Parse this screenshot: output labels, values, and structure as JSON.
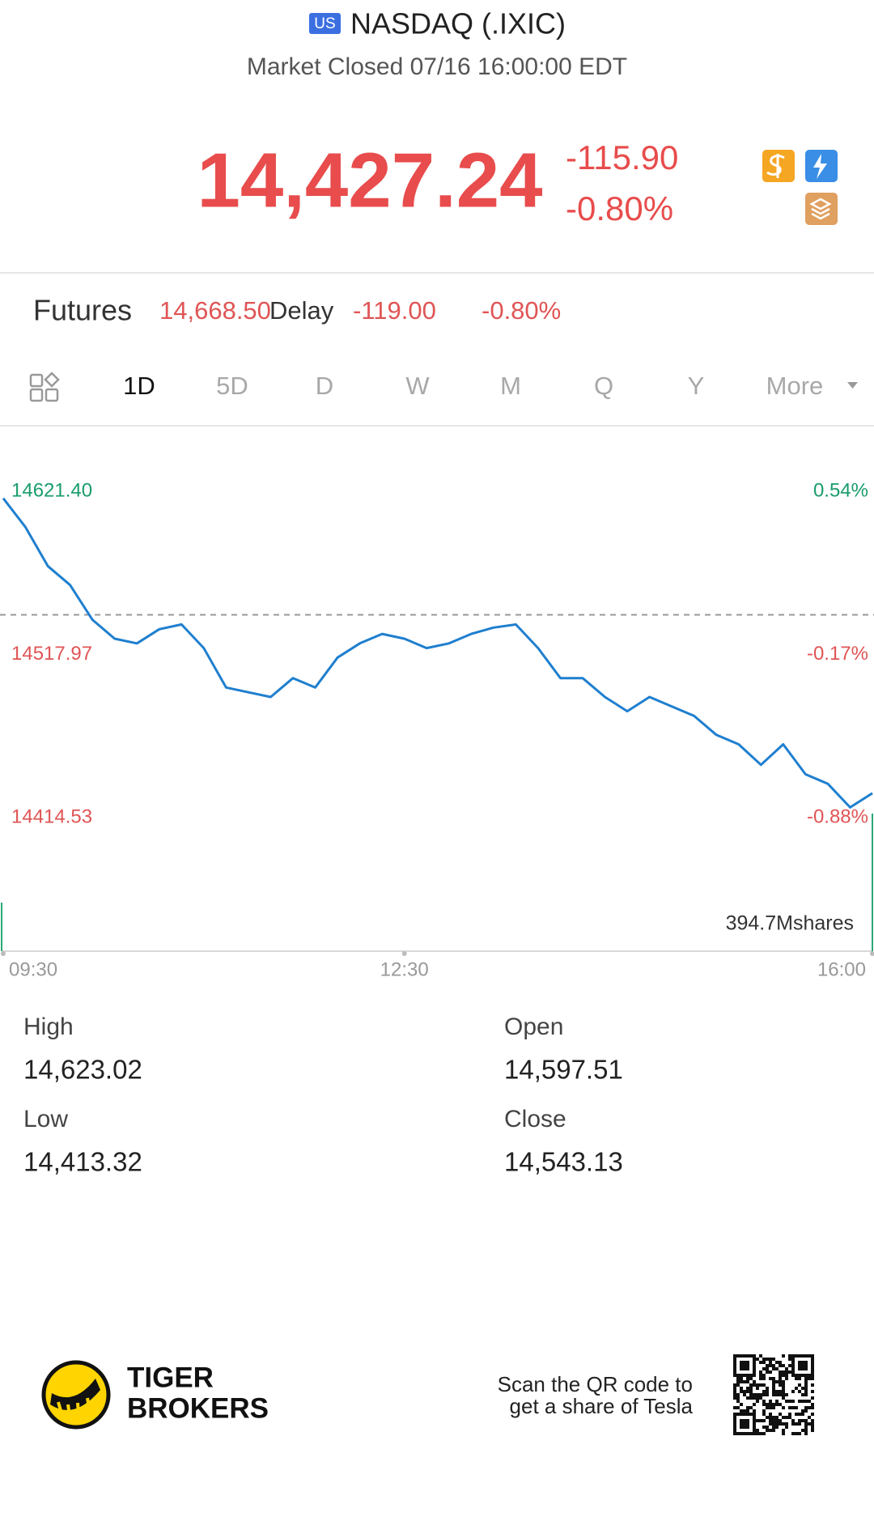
{
  "header": {
    "badge": "US",
    "title": "NASDAQ (.IXIC)",
    "status": "Market Closed 07/16 16:00:00 EDT"
  },
  "quote": {
    "price": "14,427.24",
    "change": "-115.90",
    "change_pct": "-0.80%"
  },
  "futures": {
    "label": "Futures",
    "price": "14,668.50",
    "delay": "Delay",
    "change": "-119.00",
    "change_pct": "-0.80%"
  },
  "tabs": [
    "1D",
    "5D",
    "D",
    "W",
    "M",
    "Q",
    "Y",
    "More"
  ],
  "chart_data": {
    "type": "line",
    "color": "#1f7fcf",
    "values": [
      14617,
      14598.7,
      14574,
      14562,
      14540,
      14528,
      14525,
      14534,
      14537,
      14522,
      14497,
      14494,
      14491,
      14503,
      14497,
      14516,
      14525,
      14531,
      14528,
      14522,
      14525,
      14531,
      14535,
      14537,
      14522,
      14503,
      14503,
      14491,
      14482,
      14491,
      14485,
      14479,
      14467,
      14461,
      14448,
      14461,
      14442,
      14436,
      14421,
      14430
    ],
    "ylim": [
      14414.53,
      14621.4
    ],
    "yticks": [
      {
        "value": 14621.4,
        "label": "14621.40"
      },
      14517.97,
      14414.53
    ],
    "y2lim": [
      -0.88,
      0.54
    ],
    "y2ticks": [
      {
        "value": 0.54,
        "label": "0.54%"
      },
      {
        "value": -0.17,
        "label": "-0.17%"
      },
      {
        "value": -0.88,
        "label": "-0.88%"
      }
    ],
    "prev_close": 14543.13,
    "xticks": [
      {
        "value": 0,
        "label": "09:30"
      },
      {
        "value": 18,
        "label": "12:30"
      },
      {
        "value": 39,
        "label": "16:00"
      }
    ],
    "volume_label": "394.7Mshares"
  },
  "stats": [
    {
      "label": "High",
      "value": "14,623.02"
    },
    {
      "label": "Open",
      "value": "14,597.51"
    },
    {
      "label": "Low",
      "value": "14,413.32"
    },
    {
      "label": "Close",
      "value": "14,543.13"
    }
  ],
  "footer": {
    "brand": [
      "TIGER",
      "BROKERS"
    ],
    "promo": [
      "Scan the QR code to",
      "get a share of Tesla"
    ]
  }
}
